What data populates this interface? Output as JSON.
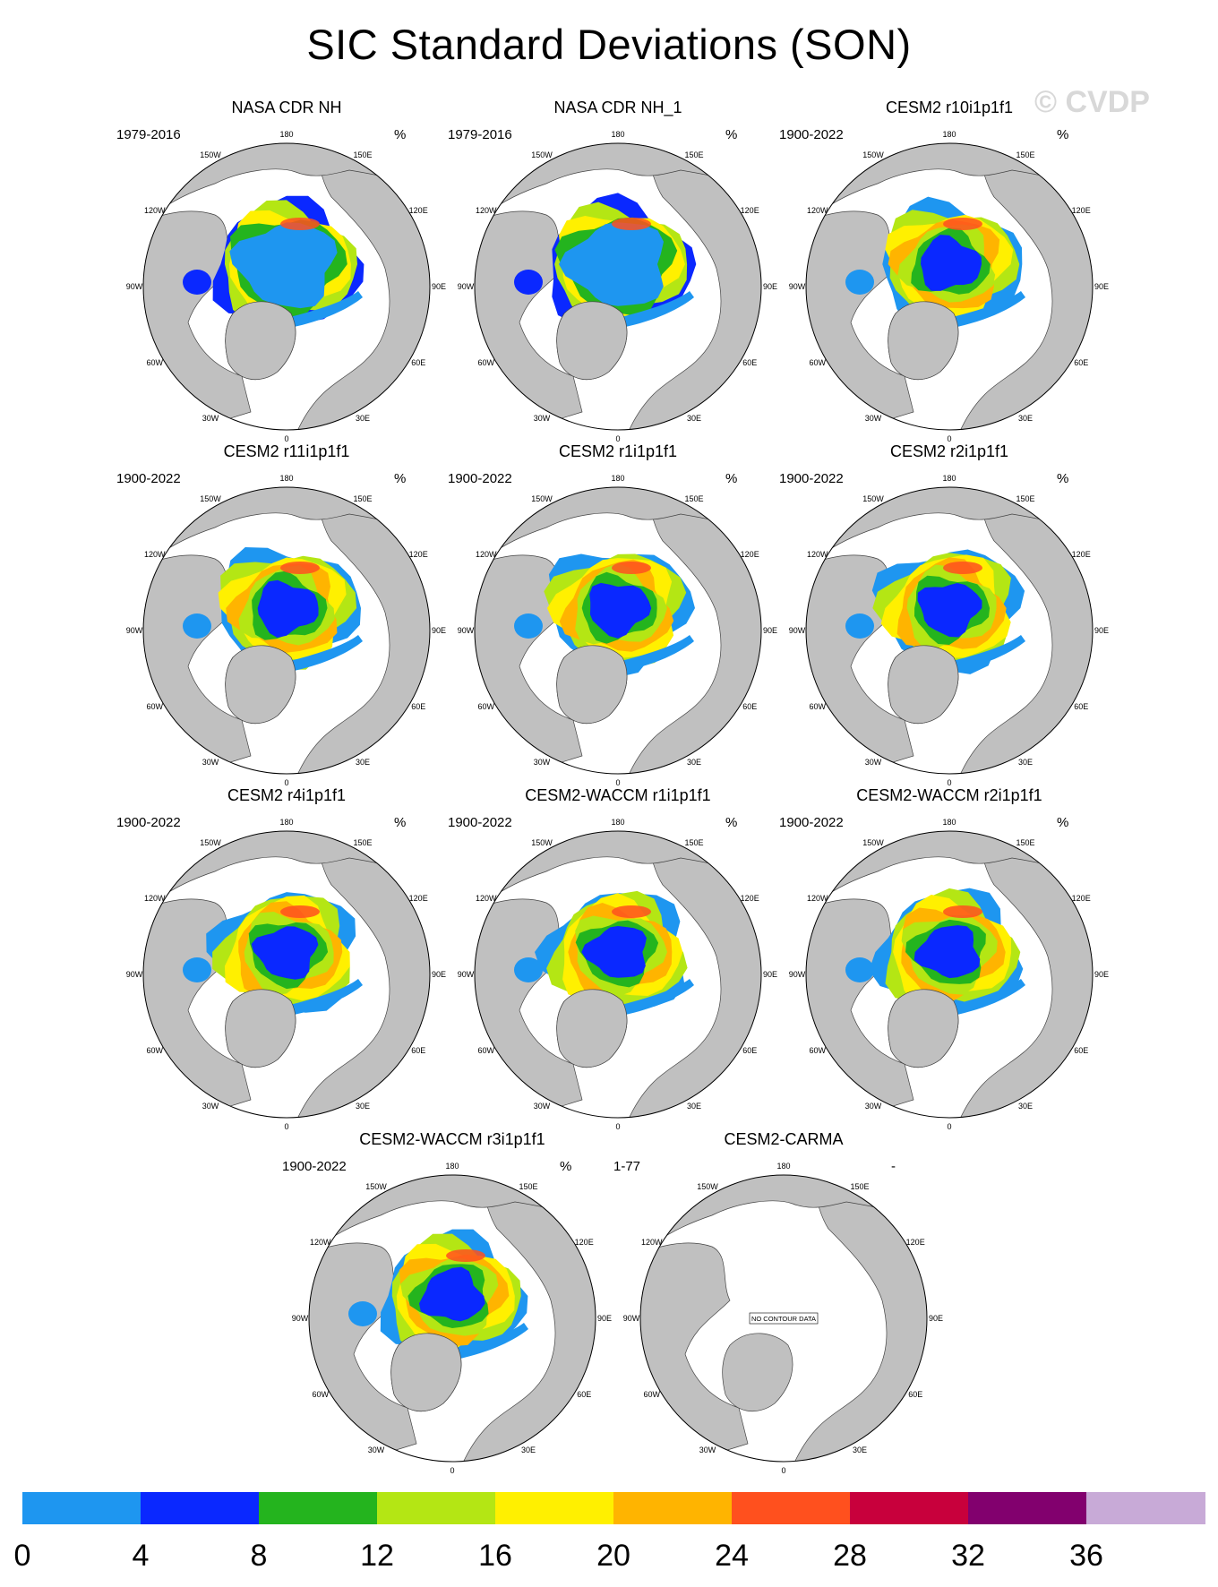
{
  "header": {
    "title": "SIC Standard Deviations (SON)",
    "watermark": "© CVDP"
  },
  "lon_labels": {
    "n180": "180",
    "e150": "150E",
    "e120": "120E",
    "e90": "90E",
    "e60": "60E",
    "e30": "30E",
    "s0": "0",
    "w30": "30W",
    "w60": "60W",
    "w90": "90W",
    "w120": "120W",
    "w150": "150W"
  },
  "no_data_text": "NO CONTOUR DATA",
  "colors": {
    "ocean": "#ffffff",
    "land": "#c0c0c0",
    "levels": [
      "#1e96f0",
      "#0a28ff",
      "#24b41e",
      "#b4e614",
      "#fff000",
      "#ffb400",
      "#ff501e",
      "#c8003c",
      "#82006e",
      "#c8aad7"
    ]
  },
  "chart_data": {
    "type": "heatmap",
    "variable": "SIC Standard Deviations",
    "season": "SON",
    "panels": [
      {
        "title": "NASA CDR NH",
        "period": "1979-2016",
        "units": "%",
        "style": "obs",
        "has_data": true
      },
      {
        "title": "NASA CDR NH_1",
        "period": "1979-2016",
        "units": "%",
        "style": "obs",
        "has_data": true
      },
      {
        "title": "CESM2 r10i1p1f1",
        "period": "1900-2022",
        "units": "%",
        "style": "model",
        "has_data": true
      },
      {
        "title": "CESM2 r11i1p1f1",
        "period": "1900-2022",
        "units": "%",
        "style": "model",
        "has_data": true
      },
      {
        "title": "CESM2 r1i1p1f1",
        "period": "1900-2022",
        "units": "%",
        "style": "model",
        "has_data": true
      },
      {
        "title": "CESM2 r2i1p1f1",
        "period": "1900-2022",
        "units": "%",
        "style": "model",
        "has_data": true
      },
      {
        "title": "CESM2 r4i1p1f1",
        "period": "1900-2022",
        "units": "%",
        "style": "model",
        "has_data": true
      },
      {
        "title": "CESM2-WACCM r1i1p1f1",
        "period": "1900-2022",
        "units": "%",
        "style": "model",
        "has_data": true
      },
      {
        "title": "CESM2-WACCM r2i1p1f1",
        "period": "1900-2022",
        "units": "%",
        "style": "model",
        "has_data": true
      },
      {
        "title": "CESM2-WACCM r3i1p1f1",
        "period": "1900-2022",
        "units": "%",
        "style": "model",
        "has_data": true
      },
      {
        "title": "CESM2-CARMA",
        "period": "1-77",
        "units": "-",
        "style": "none",
        "has_data": false
      }
    ],
    "colorbar": {
      "levels": [
        0,
        4,
        8,
        12,
        16,
        20,
        24,
        28,
        32,
        36
      ],
      "tick_labels": [
        "0",
        "4",
        "8",
        "12",
        "16",
        "20",
        "24",
        "28",
        "32",
        "36"
      ]
    }
  }
}
